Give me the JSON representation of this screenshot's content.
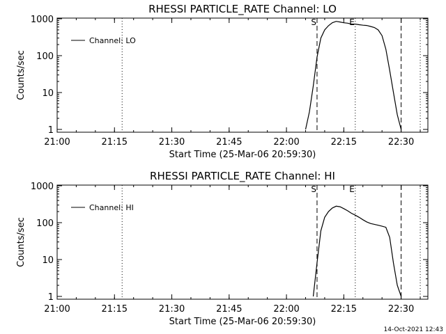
{
  "footer_timestamp": "14-Oct-2021 12:43",
  "chart_data": [
    {
      "type": "line",
      "title": "RHESSI PARTICLE_RATE Channel: LO",
      "xlabel": "Start Time (25-Mar-06 20:59:30)",
      "ylabel": "Counts/sec",
      "yscale": "log",
      "ylim": [
        1,
        1000
      ],
      "xlim": [
        "21:00",
        "22:37"
      ],
      "x_ticks": [
        "21:00",
        "21:15",
        "21:30",
        "21:45",
        "22:00",
        "22:15",
        "22:30"
      ],
      "y_ticks": [
        "1",
        "10",
        "100",
        "1000"
      ],
      "legend": {
        "position": "top-left",
        "entries": [
          "Channel: LO"
        ]
      },
      "markers": [
        {
          "label": "S",
          "time": "22:08",
          "style": "dashed"
        },
        {
          "label": "E",
          "time": "22:18",
          "style": "dotted"
        },
        {
          "label": "",
          "time": "22:30",
          "style": "dashed"
        },
        {
          "label": "",
          "time": "21:17",
          "style": "dotted"
        },
        {
          "label": "",
          "time": "22:35",
          "style": "dotted"
        }
      ],
      "series": [
        {
          "name": "Channel: LO",
          "x": [
            "22:05",
            "22:06",
            "22:07",
            "22:08",
            "22:09",
            "22:10",
            "22:11",
            "22:12",
            "22:13",
            "22:14",
            "22:15",
            "22:16",
            "22:17",
            "22:18",
            "22:19",
            "22:20",
            "22:21",
            "22:22",
            "22:23",
            "22:24",
            "22:25",
            "22:26",
            "22:27",
            "22:28",
            "22:29",
            "22:30"
          ],
          "y": [
            1,
            3,
            15,
            90,
            300,
            500,
            650,
            780,
            850,
            820,
            780,
            760,
            720,
            720,
            690,
            670,
            660,
            620,
            580,
            500,
            350,
            150,
            40,
            10,
            2.5,
            1
          ]
        }
      ]
    },
    {
      "type": "line",
      "title": "RHESSI PARTICLE_RATE Channel: HI",
      "xlabel": "Start Time (25-Mar-06 20:59:30)",
      "ylabel": "Counts/sec",
      "yscale": "log",
      "ylim": [
        1,
        1000
      ],
      "xlim": [
        "21:00",
        "22:37"
      ],
      "x_ticks": [
        "21:00",
        "21:15",
        "21:30",
        "21:45",
        "22:00",
        "22:15",
        "22:30"
      ],
      "y_ticks": [
        "1",
        "10",
        "100",
        "1000"
      ],
      "legend": {
        "position": "top-left",
        "entries": [
          "Channel: HI"
        ]
      },
      "markers": [
        {
          "label": "S",
          "time": "22:08",
          "style": "dashed"
        },
        {
          "label": "E",
          "time": "22:18",
          "style": "dotted"
        },
        {
          "label": "",
          "time": "22:30",
          "style": "dashed"
        },
        {
          "label": "",
          "time": "21:17",
          "style": "dotted"
        },
        {
          "label": "",
          "time": "22:35",
          "style": "dotted"
        }
      ],
      "series": [
        {
          "name": "Channel: HI",
          "x": [
            "22:07",
            "22:08",
            "22:09",
            "22:10",
            "22:11",
            "22:12",
            "22:13",
            "22:14",
            "22:15",
            "22:16",
            "22:17",
            "22:18",
            "22:19",
            "22:20",
            "22:21",
            "22:22",
            "22:23",
            "22:24",
            "22:25",
            "22:26",
            "22:27",
            "22:28",
            "22:29",
            "22:30"
          ],
          "y": [
            1,
            8,
            60,
            140,
            200,
            250,
            280,
            270,
            240,
            210,
            180,
            160,
            140,
            120,
            105,
            95,
            90,
            85,
            80,
            75,
            40,
            8,
            2,
            1
          ]
        }
      ]
    }
  ]
}
